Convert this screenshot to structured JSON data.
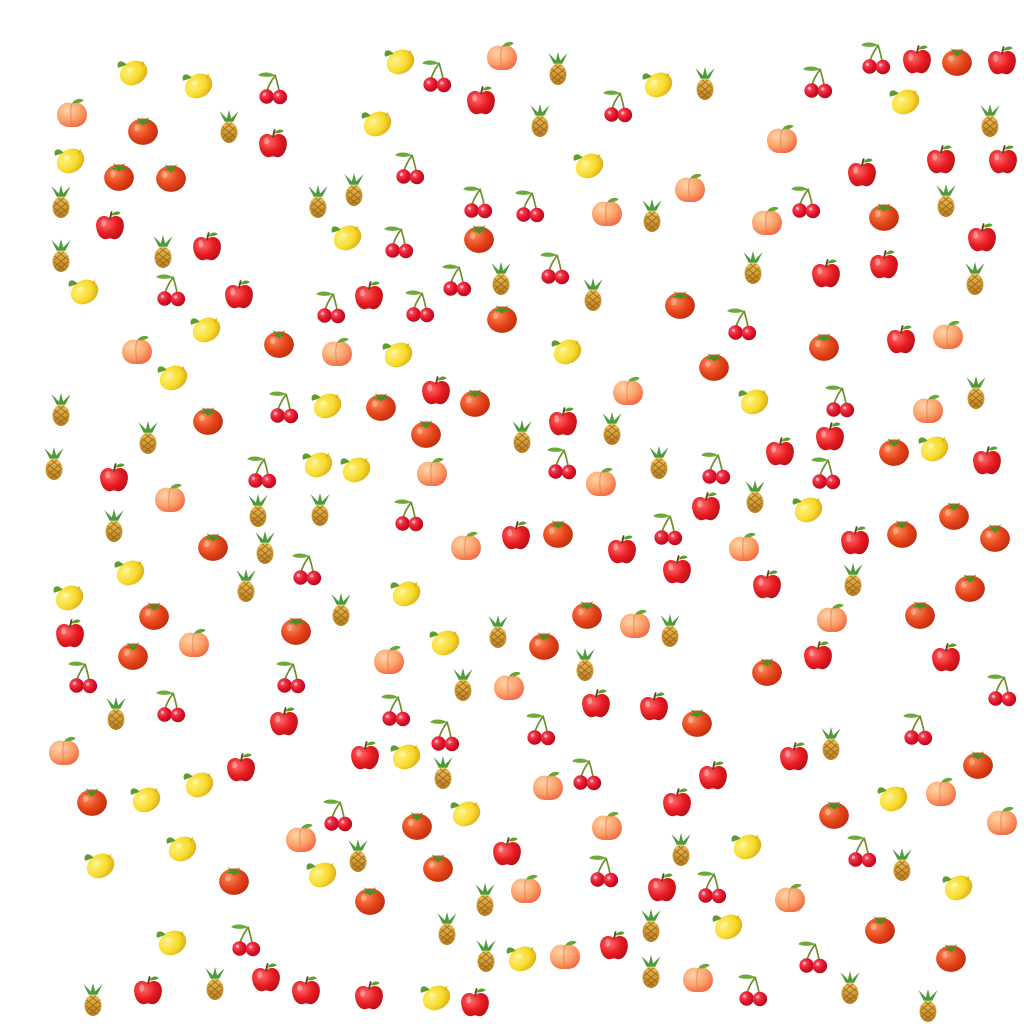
{
  "background": "#ffffff",
  "fruit_kinds": {
    "apple": {
      "icon": "apple-icon",
      "colors": {
        "main": "#e81c22",
        "dark": "#b30f16",
        "leaf": "#5c9e2c",
        "stem": "#6b3d1e"
      }
    },
    "tomato": {
      "icon": "tomato-icon",
      "colors": {
        "main": "#e5431a",
        "dark": "#b82c0c",
        "leaf": "#4c8f24"
      }
    },
    "peach": {
      "icon": "peach-icon",
      "colors": {
        "main": "#fba26b",
        "dark": "#ef5f3c",
        "leaf": "#6aa536"
      }
    },
    "lemon": {
      "icon": "lemon-icon",
      "colors": {
        "main": "#f7da2e",
        "dark": "#d9a80f",
        "leaf": "#5f9b2e"
      }
    },
    "cherry": {
      "icon": "cherry-icon",
      "colors": {
        "main": "#e0142a",
        "dark": "#a50b1b",
        "leaf": "#6eaa3a",
        "stem": "#6f8f2a"
      }
    },
    "pineapple": {
      "icon": "pineapple-icon",
      "colors": {
        "main": "#d9a437",
        "dark": "#a86c17",
        "leaf": "#4f9a3a"
      }
    }
  }
}
